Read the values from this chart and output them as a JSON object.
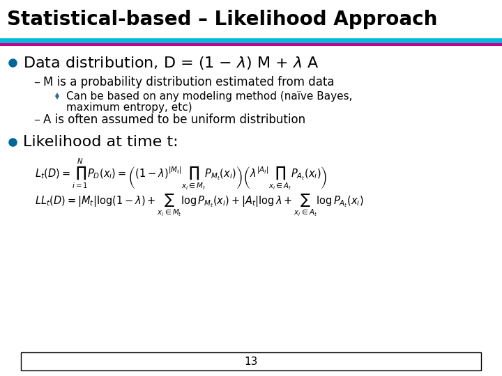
{
  "title": "Statistical-based – Likelihood Approach",
  "title_bg": "#ffffff",
  "title_fg": "#000000",
  "title_fontsize": 20,
  "teal_color": "#00BBDD",
  "purple_color": "#CC0088",
  "bullet_color": "#006699",
  "diamond_color": "#336699",
  "body_bg": "#ffffff",
  "page_number": "13",
  "bullet1_text": "Data distribution, D = (1 – λ) M + λ A",
  "sub1_text": "M is a probability distribution estimated from data",
  "sub1a_line1": "Can be based on any modeling method (naïve Bayes,",
  "sub1a_line2": "maximum entropy, etc)",
  "sub2_text": "A is often assumed to be uniform distribution",
  "bullet2_text": "Likelihood at time t:",
  "eq1": "$L_t(D) = \\prod_{i=1}^{N} P_D(x_i) = \\left( (1-\\lambda)^{|M_t|} \\prod_{x_i \\in M_t} P_{M_t}(x_i) \\right) \\left( \\lambda^{|A_t|} \\prod_{x_i \\in A_t} P_{A_t}(x_i) \\right)$",
  "eq2": "$LL_t(D) = |M_t|\\log(1-\\lambda) + \\sum_{x_i \\in M_t} \\log P_{M_t}(x_i) + |A_t|\\log\\lambda + \\sum_{x_i \\in A_t} \\log P_{A_t}(x_i)$"
}
